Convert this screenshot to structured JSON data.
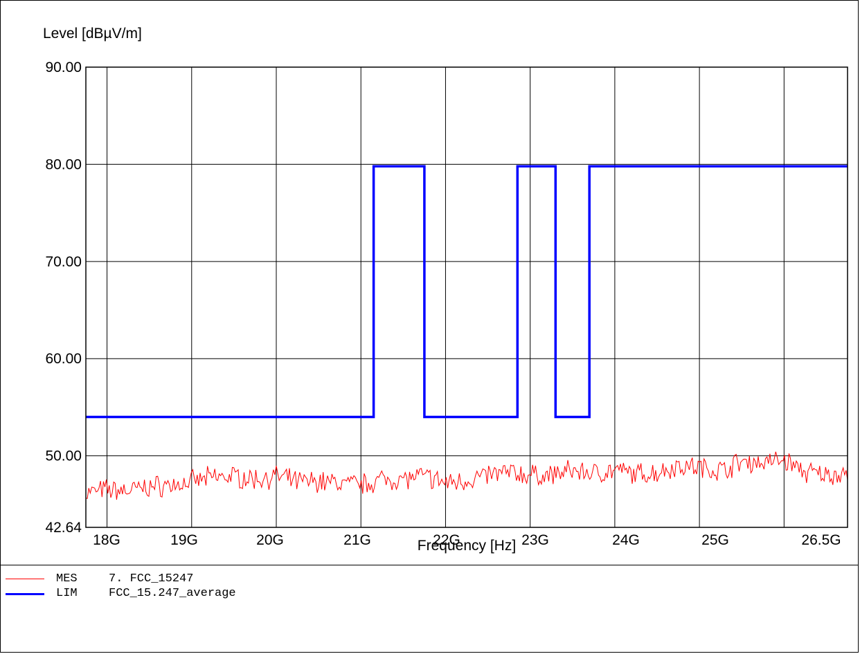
{
  "chart_data": {
    "type": "line",
    "title": "",
    "ylabel": "Level [dBµV/m]",
    "xlabel": "Frequency [Hz]",
    "xlim": [
      17.75,
      26.75
    ],
    "ylim": [
      42.64,
      90.0
    ],
    "x_scale": "linear (GHz)",
    "grid": true,
    "y_ticks": [
      {
        "value": 90.0,
        "label": "90.00"
      },
      {
        "value": 80.0,
        "label": "80.00"
      },
      {
        "value": 70.0,
        "label": "70.00"
      },
      {
        "value": 60.0,
        "label": "60.00"
      },
      {
        "value": 50.0,
        "label": "50.00"
      },
      {
        "value": 42.64,
        "label": "42.64"
      }
    ],
    "x_ticks": [
      {
        "value": 18,
        "label": "18G"
      },
      {
        "value": 19,
        "label": "19G"
      },
      {
        "value": 20,
        "label": "20G"
      },
      {
        "value": 21,
        "label": "21G"
      },
      {
        "value": 22,
        "label": "22G"
      },
      {
        "value": 23,
        "label": "23G"
      },
      {
        "value": 24,
        "label": "24G"
      },
      {
        "value": 25,
        "label": "25G"
      },
      {
        "value": 26.5,
        "label": "26.5G"
      }
    ],
    "series": [
      {
        "code": "MES",
        "name": "7. FCC_15247",
        "color": "#ff0000",
        "x": [
          17.75,
          18.0,
          18.25,
          18.5,
          18.75,
          19.0,
          19.25,
          19.5,
          19.75,
          20.0,
          20.25,
          20.5,
          20.75,
          21.0,
          21.25,
          21.5,
          21.75,
          22.0,
          22.25,
          22.5,
          22.75,
          23.0,
          23.25,
          23.5,
          23.75,
          24.0,
          24.25,
          24.5,
          24.75,
          25.0,
          25.25,
          25.5,
          25.75,
          26.0,
          26.25,
          26.5,
          26.75
        ],
        "values": [
          46.2,
          46.5,
          46.4,
          46.8,
          47.0,
          47.3,
          47.8,
          47.9,
          47.6,
          47.9,
          47.3,
          47.4,
          47.2,
          47.0,
          47.6,
          47.6,
          47.9,
          47.2,
          47.5,
          48.0,
          48.3,
          48.0,
          48.0,
          48.5,
          48.2,
          48.5,
          48.1,
          48.3,
          49.0,
          48.8,
          48.5,
          49.4,
          49.3,
          49.6,
          48.3,
          48.0,
          48.3
        ]
      },
      {
        "code": "LIM",
        "name": "FCC_15.247_average",
        "color": "#0000ff",
        "step": true,
        "x": [
          17.75,
          21.15,
          21.15,
          21.75,
          21.75,
          22.85,
          22.85,
          23.3,
          23.3,
          23.7,
          23.7,
          26.75
        ],
        "values": [
          54.0,
          54.0,
          79.8,
          79.8,
          54.0,
          54.0,
          79.8,
          79.8,
          54.0,
          54.0,
          79.8,
          79.8
        ]
      }
    ]
  }
}
